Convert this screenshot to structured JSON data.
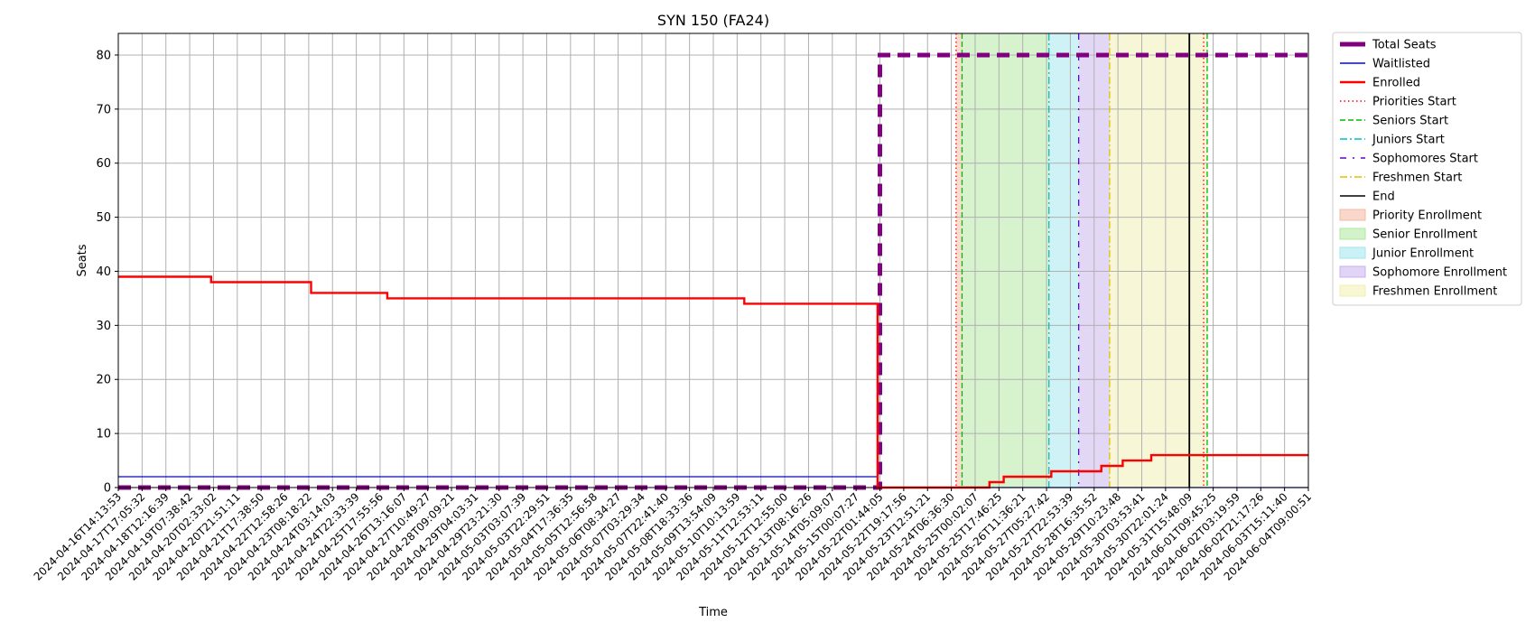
{
  "chart_data": {
    "type": "line",
    "title": "SYN 150 (FA24)",
    "xlabel": "Time",
    "ylabel": "Seats",
    "ylim": [
      0,
      84
    ],
    "yticks": [
      0,
      10,
      20,
      30,
      40,
      50,
      60,
      70,
      80
    ],
    "grid": true,
    "legend_position": "outside-top-right",
    "x_tick_labels": [
      "2024-04-16T14:13:53",
      "2024-04-17T17:05:32",
      "2024-04-18T12:16:39",
      "2024-04-19T07:38:42",
      "2024-04-20T02:33:02",
      "2024-04-20T21:51:11",
      "2024-04-21T17:38:50",
      "2024-04-22T12:58:26",
      "2024-04-23T08:18:22",
      "2024-04-24T03:14:03",
      "2024-04-24T22:33:39",
      "2024-04-25T17:55:56",
      "2024-04-26T13:16:07",
      "2024-04-27T10:49:27",
      "2024-04-28T09:09:21",
      "2024-04-29T04:03:31",
      "2024-04-29T23:21:30",
      "2024-05-03T03:07:39",
      "2024-05-03T22:29:51",
      "2024-05-04T17:36:35",
      "2024-05-05T12:56:58",
      "2024-05-06T08:34:27",
      "2024-05-07T03:29:34",
      "2024-05-07T22:41:40",
      "2024-05-08T18:33:36",
      "2024-05-09T13:54:09",
      "2024-05-10T10:13:59",
      "2024-05-11T12:53:11",
      "2024-05-12T12:55:00",
      "2024-05-13T08:16:26",
      "2024-05-14T05:09:07",
      "2024-05-15T00:07:27",
      "2024-05-22T01:44:05",
      "2024-05-22T19:17:56",
      "2024-05-23T12:51:21",
      "2024-05-24T06:36:30",
      "2024-05-25T00:02:07",
      "2024-05-25T17:46:25",
      "2024-05-26T11:36:21",
      "2024-05-27T05:27:42",
      "2024-05-27T22:53:39",
      "2024-05-28T16:35:52",
      "2024-05-29T10:23:48",
      "2024-05-30T03:53:41",
      "2024-05-30T22:01:24",
      "2024-05-31T15:48:09",
      "2024-06-01T09:45:25",
      "2024-06-02T03:19:59",
      "2024-06-02T21:17:26",
      "2024-06-03T15:11:40",
      "2024-06-04T09:00:51"
    ],
    "x_range_index": [
      0,
      50
    ],
    "series": [
      {
        "name": "Total Seats",
        "color": "#800080",
        "style": "dashed-thick",
        "points": [
          [
            0,
            0
          ],
          [
            32.0,
            0
          ],
          [
            32.0,
            80
          ],
          [
            50,
            80
          ]
        ]
      },
      {
        "name": "Waitlisted",
        "color": "#0000ff",
        "style": "solid-thin",
        "points": [
          [
            0,
            2
          ],
          [
            31.9,
            2
          ],
          [
            31.9,
            0
          ],
          [
            50,
            0
          ]
        ]
      },
      {
        "name": "Enrolled",
        "color": "#ff0000",
        "style": "solid",
        "points": [
          [
            0,
            39
          ],
          [
            3.9,
            39
          ],
          [
            3.9,
            38
          ],
          [
            8.1,
            38
          ],
          [
            8.1,
            36
          ],
          [
            11.3,
            36
          ],
          [
            11.3,
            35
          ],
          [
            26.3,
            35
          ],
          [
            26.3,
            34
          ],
          [
            31.9,
            34
          ],
          [
            31.9,
            0
          ],
          [
            36.6,
            0
          ],
          [
            36.6,
            1
          ],
          [
            37.2,
            1
          ],
          [
            37.2,
            2
          ],
          [
            39.2,
            2
          ],
          [
            39.2,
            3
          ],
          [
            41.3,
            3
          ],
          [
            41.3,
            4
          ],
          [
            42.2,
            4
          ],
          [
            42.2,
            5
          ],
          [
            43.4,
            5
          ],
          [
            43.4,
            6
          ],
          [
            50,
            6
          ]
        ]
      }
    ],
    "vlines": [
      {
        "name": "Priorities Start",
        "color": "#ff0000",
        "style": "dotted",
        "x": 35.2
      },
      {
        "name": "Seniors Start",
        "color": "#00bb00",
        "style": "dashed",
        "x": 35.45
      },
      {
        "name": "Juniors Start",
        "color": "#00bfbf",
        "style": "dashdot",
        "x": 39.1
      },
      {
        "name": "Sophomores Start",
        "color": "#6000c8",
        "style": "loosedashdot",
        "x": 40.35
      },
      {
        "name": "Freshmen Start",
        "color": "#e0c000",
        "style": "dashdot",
        "x": 41.65
      },
      {
        "name": "End",
        "color": "#000000",
        "style": "solid",
        "x": 45.0
      }
    ],
    "extra_vlines": [
      {
        "color": "#ff0000",
        "style": "dotted",
        "x": 45.6
      },
      {
        "color": "#00bb00",
        "style": "dashed",
        "x": 45.75
      }
    ],
    "spans": [
      {
        "name": "Priority Enrollment",
        "color": "#f4b8a0",
        "from": 35.2,
        "to": 35.45
      },
      {
        "name": "Senior Enrollment",
        "color": "#aee89c",
        "from": 35.45,
        "to": 39.1
      },
      {
        "name": "Junior Enrollment",
        "color": "#9ee6ec",
        "from": 39.1,
        "to": 40.35
      },
      {
        "name": "Sophomore Enrollment",
        "color": "#c8b0ee",
        "from": 40.35,
        "to": 41.65
      },
      {
        "name": "Freshmen Enrollment",
        "color": "#f0f0b0",
        "from": 41.65,
        "to": 45.75
      }
    ]
  }
}
